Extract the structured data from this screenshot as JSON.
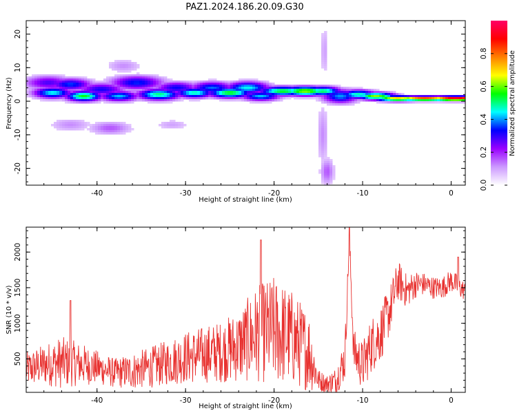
{
  "title": "PAZ1.2024.186.20.09.G30",
  "chart_data": [
    {
      "type": "heatmap",
      "xlabel": "Height of straight line (km)",
      "ylabel": "Frequency (Hz)",
      "xlim": [
        -48,
        1.6
      ],
      "ylim": [
        -25,
        24
      ],
      "xticks": [
        -40,
        -30,
        -20,
        -10,
        0
      ],
      "yticks": [
        -20,
        -10,
        0,
        10,
        20
      ],
      "colorbar": {
        "label": "Normalized spectral amplitude",
        "range": [
          0,
          1
        ],
        "ticks": [
          "0.0",
          "0.2",
          "0.4",
          "0.6",
          "0.8"
        ],
        "tick_values": [
          0.0,
          0.2,
          0.4,
          0.6,
          0.8
        ],
        "colors": [
          "#ffffff",
          "#cc99ff",
          "#9900ff",
          "#0000ff",
          "#00ffff",
          "#00ff00",
          "#ffff00",
          "#ff8000",
          "#ff0000",
          "#ff0066"
        ]
      },
      "blobs": [
        {
          "x": -45.5,
          "y": 5.5,
          "sx": 2.0,
          "sy": 1.5,
          "v": 0.28
        },
        {
          "x": -45.0,
          "y": 2.5,
          "sx": 1.6,
          "sy": 1.2,
          "v": 0.45
        },
        {
          "x": -43.0,
          "y": 5.0,
          "sx": 1.8,
          "sy": 1.3,
          "v": 0.36
        },
        {
          "x": -41.5,
          "y": 1.5,
          "sx": 1.5,
          "sy": 1.1,
          "v": 0.55
        },
        {
          "x": -39.5,
          "y": 3.5,
          "sx": 2.0,
          "sy": 1.4,
          "v": 0.32
        },
        {
          "x": -37.5,
          "y": 1.5,
          "sx": 1.6,
          "sy": 1.1,
          "v": 0.42
        },
        {
          "x": -35.5,
          "y": 5.5,
          "sx": 2.2,
          "sy": 1.5,
          "v": 0.35
        },
        {
          "x": -33.0,
          "y": 2.0,
          "sx": 1.8,
          "sy": 1.2,
          "v": 0.5
        },
        {
          "x": -31.0,
          "y": 4.0,
          "sx": 1.8,
          "sy": 1.3,
          "v": 0.33
        },
        {
          "x": -29.0,
          "y": 2.5,
          "sx": 1.6,
          "sy": 1.1,
          "v": 0.48
        },
        {
          "x": -27.0,
          "y": 4.0,
          "sx": 1.8,
          "sy": 1.3,
          "v": 0.38
        },
        {
          "x": -25.0,
          "y": 2.5,
          "sx": 1.8,
          "sy": 1.1,
          "v": 0.55
        },
        {
          "x": -23.0,
          "y": 4.0,
          "sx": 1.8,
          "sy": 1.3,
          "v": 0.45
        },
        {
          "x": -21.5,
          "y": 1.5,
          "sx": 1.6,
          "sy": 1.0,
          "v": 0.42
        },
        {
          "x": -19.0,
          "y": 3.0,
          "sx": 2.0,
          "sy": 1.0,
          "v": 0.55
        },
        {
          "x": -16.5,
          "y": 3.0,
          "sx": 2.0,
          "sy": 1.0,
          "v": 0.62
        },
        {
          "x": -14.5,
          "y": 3.0,
          "sx": 1.5,
          "sy": 1.0,
          "v": 0.52
        },
        {
          "x": -12.5,
          "y": 1.5,
          "sx": 1.5,
          "sy": 1.5,
          "v": 0.4
        },
        {
          "x": -10.5,
          "y": 2.0,
          "sx": 1.5,
          "sy": 1.0,
          "v": 0.48
        },
        {
          "x": -8.5,
          "y": 1.5,
          "sx": 1.6,
          "sy": 0.8,
          "v": 0.62
        },
        {
          "x": -6.0,
          "y": 0.8,
          "sx": 2.0,
          "sy": 0.6,
          "v": 0.72
        },
        {
          "x": -3.0,
          "y": 0.8,
          "sx": 2.5,
          "sy": 0.5,
          "v": 0.85
        },
        {
          "x": 0.5,
          "y": 0.8,
          "sx": 2.5,
          "sy": 0.5,
          "v": 0.95
        },
        {
          "x": -37.0,
          "y": 10.5,
          "sx": 1.5,
          "sy": 1.5,
          "v": 0.12
        },
        {
          "x": -43.0,
          "y": -7.0,
          "sx": 1.8,
          "sy": 1.5,
          "v": 0.12
        },
        {
          "x": -38.5,
          "y": -8.0,
          "sx": 1.8,
          "sy": 1.5,
          "v": 0.16
        },
        {
          "x": -31.5,
          "y": -7.0,
          "sx": 1.5,
          "sy": 1.2,
          "v": 0.1
        },
        {
          "x": -14.5,
          "y": -10.0,
          "sx": 0.5,
          "sy": 7.0,
          "v": 0.12
        },
        {
          "x": -14.3,
          "y": 15.0,
          "sx": 0.4,
          "sy": 6.0,
          "v": 0.1
        },
        {
          "x": -14.0,
          "y": -21.0,
          "sx": 0.6,
          "sy": 3.0,
          "v": 0.16
        }
      ]
    },
    {
      "type": "line",
      "xlabel": "Height of straight line (km)",
      "ylabel": "SNR (10 * v/v)",
      "xlim": [
        -48,
        1.6
      ],
      "ylim": [
        30,
        2350
      ],
      "xticks": [
        -40,
        -30,
        -20,
        -10,
        0
      ],
      "yticks": [
        500,
        1000,
        1500,
        2000
      ],
      "color": "#e8312f",
      "series_control_points": {
        "x": [
          -48,
          -46,
          -44,
          -42,
          -40,
          -38,
          -36,
          -34,
          -32,
          -30,
          -28,
          -26,
          -24,
          -22,
          -20,
          -18,
          -16,
          -15,
          -14,
          -13,
          -12,
          -11.5,
          -11,
          -10,
          -9,
          -8,
          -7,
          -6,
          -5,
          -4,
          -3,
          -2,
          -1,
          0,
          1,
          1.6
        ],
        "y": [
          350,
          420,
          450,
          430,
          380,
          300,
          330,
          380,
          450,
          520,
          560,
          600,
          680,
          850,
          900,
          800,
          600,
          200,
          150,
          200,
          500,
          2200,
          600,
          400,
          700,
          850,
          1150,
          1600,
          1450,
          1550,
          1550,
          1500,
          1500,
          1600,
          1500,
          1450
        ],
        "noise_amplitude": [
          150,
          180,
          230,
          190,
          150,
          130,
          160,
          180,
          200,
          230,
          250,
          270,
          320,
          420,
          480,
          420,
          350,
          100,
          80,
          120,
          200,
          100,
          200,
          220,
          250,
          250,
          220,
          180,
          150,
          120,
          100,
          100,
          100,
          100,
          100,
          80
        ],
        "peaks": [
          {
            "x": -43.0,
            "y": 1320
          },
          {
            "x": -21.5,
            "y": 2170
          },
          {
            "x": -11.5,
            "y": 2350
          },
          {
            "x": 0.8,
            "y": 1930
          }
        ]
      }
    }
  ]
}
